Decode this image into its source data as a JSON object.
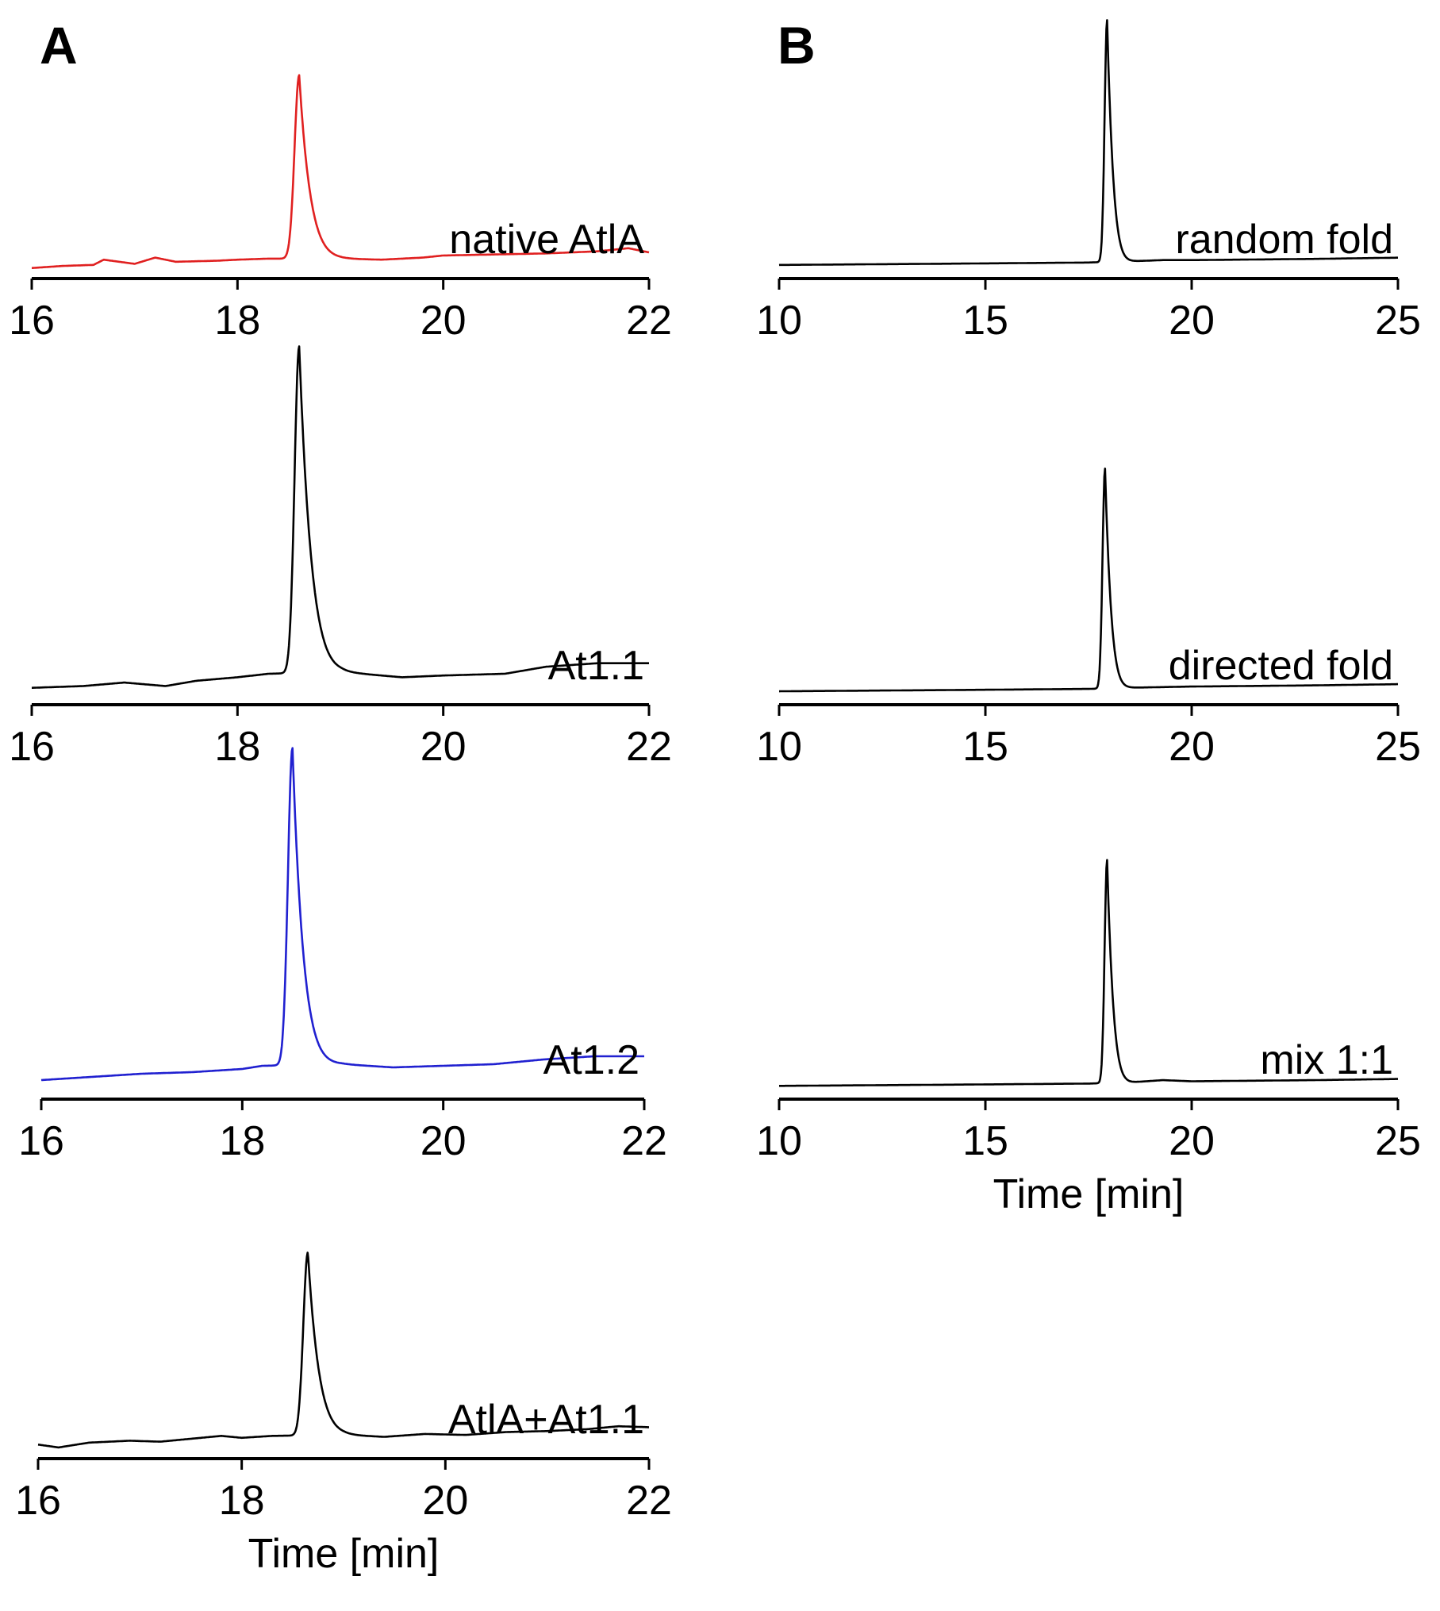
{
  "panels": [
    {
      "letter": "A"
    },
    {
      "letter": "B"
    }
  ],
  "chart_data": [
    {
      "type": "line",
      "panel": "A",
      "title": "native AtlA",
      "label": "native AtlA",
      "color": "#e02020",
      "xlim": [
        16,
        22
      ],
      "ylim": [
        0,
        1
      ],
      "ticks": [
        "16",
        "18",
        "20",
        "22"
      ],
      "xlabel": "",
      "baseline": [
        [
          16.0,
          0.02
        ],
        [
          16.3,
          0.03
        ],
        [
          16.6,
          0.035
        ],
        [
          16.7,
          0.06
        ],
        [
          17.0,
          0.04
        ],
        [
          17.2,
          0.07
        ],
        [
          17.4,
          0.05
        ],
        [
          17.8,
          0.055
        ],
        [
          18.0,
          0.06
        ],
        [
          18.3,
          0.065
        ],
        [
          19.0,
          0.065
        ],
        [
          19.4,
          0.06
        ],
        [
          19.8,
          0.07
        ],
        [
          20.0,
          0.08
        ],
        [
          20.5,
          0.085
        ],
        [
          21.0,
          0.09
        ],
        [
          21.5,
          0.1
        ],
        [
          21.8,
          0.115
        ],
        [
          22.0,
          0.095
        ]
      ],
      "peaks": [
        {
          "center": 18.6,
          "height": 0.88,
          "sigma_left": 0.045,
          "tau": 0.11
        }
      ]
    },
    {
      "type": "line",
      "panel": "A",
      "title": "At1.1",
      "label": "At1.1",
      "color": "#000000",
      "xlim": [
        16,
        22
      ],
      "ylim": [
        0,
        1
      ],
      "ticks": [
        "16",
        "18",
        "20",
        "22"
      ],
      "xlabel": "",
      "baseline": [
        [
          16.0,
          0.03
        ],
        [
          16.5,
          0.035
        ],
        [
          16.9,
          0.045
        ],
        [
          17.3,
          0.035
        ],
        [
          17.6,
          0.05
        ],
        [
          18.0,
          0.06
        ],
        [
          18.3,
          0.07
        ],
        [
          19.0,
          0.075
        ],
        [
          19.6,
          0.06
        ],
        [
          20.0,
          0.065
        ],
        [
          20.6,
          0.07
        ],
        [
          21.0,
          0.09
        ],
        [
          21.5,
          0.1
        ],
        [
          22.0,
          0.1
        ]
      ],
      "peaks": [
        {
          "center": 18.6,
          "height": 0.93,
          "sigma_left": 0.045,
          "tau": 0.12
        }
      ]
    },
    {
      "type": "line",
      "panel": "A",
      "title": "At1.2",
      "label": "At1.2",
      "color": "#2020d0",
      "xlim": [
        16,
        22
      ],
      "ylim": [
        0,
        1
      ],
      "ticks": [
        "16",
        "18",
        "20",
        "22"
      ],
      "xlabel": "",
      "baseline": [
        [
          16.0,
          0.04
        ],
        [
          16.5,
          0.05
        ],
        [
          17.0,
          0.06
        ],
        [
          17.5,
          0.065
        ],
        [
          18.0,
          0.075
        ],
        [
          18.2,
          0.085
        ],
        [
          19.0,
          0.09
        ],
        [
          19.5,
          0.08
        ],
        [
          20.0,
          0.085
        ],
        [
          20.5,
          0.09
        ],
        [
          21.0,
          0.105
        ],
        [
          21.5,
          0.115
        ],
        [
          22.0,
          0.115
        ]
      ],
      "peaks": [
        {
          "center": 18.5,
          "height": 1.0,
          "sigma_left": 0.045,
          "tau": 0.11
        }
      ]
    },
    {
      "type": "line",
      "panel": "A",
      "title": "AtlA+At1.1",
      "label": "AtlA+At1.1",
      "color": "#000000",
      "xlim": [
        16,
        22
      ],
      "ylim": [
        0,
        1
      ],
      "ticks": [
        "16",
        "18",
        "20",
        "22"
      ],
      "xlabel": "Time [min]",
      "baseline": [
        [
          16.0,
          0.04
        ],
        [
          16.2,
          0.025
        ],
        [
          16.5,
          0.05
        ],
        [
          16.9,
          0.06
        ],
        [
          17.2,
          0.055
        ],
        [
          17.5,
          0.07
        ],
        [
          17.8,
          0.085
        ],
        [
          18.0,
          0.075
        ],
        [
          18.3,
          0.085
        ],
        [
          19.0,
          0.09
        ],
        [
          19.4,
          0.08
        ],
        [
          19.8,
          0.095
        ],
        [
          20.2,
          0.09
        ],
        [
          20.6,
          0.105
        ],
        [
          21.0,
          0.11
        ],
        [
          21.4,
          0.12
        ],
        [
          21.7,
          0.135
        ],
        [
          22.0,
          0.13
        ]
      ],
      "peaks": [
        {
          "center": 18.65,
          "height": 0.95,
          "sigma_left": 0.045,
          "tau": 0.11
        }
      ]
    },
    {
      "type": "line",
      "panel": "B",
      "title": "random fold",
      "label": "random fold",
      "color": "#000000",
      "xlim": [
        10,
        25
      ],
      "ylim": [
        0,
        1
      ],
      "ticks": [
        "10",
        "15",
        "20",
        "25"
      ],
      "xlabel": "",
      "baseline": [
        [
          10.0,
          0.03
        ],
        [
          14.0,
          0.035
        ],
        [
          17.5,
          0.04
        ],
        [
          18.5,
          0.045
        ],
        [
          19.3,
          0.05
        ],
        [
          20.0,
          0.05
        ],
        [
          23.0,
          0.055
        ],
        [
          25.0,
          0.06
        ]
      ],
      "peaks": [
        {
          "center": 17.95,
          "height": 1.0,
          "sigma_left": 0.06,
          "tau": 0.16
        }
      ]
    },
    {
      "type": "line",
      "panel": "B",
      "title": "directed fold",
      "label": "directed fold",
      "color": "#000000",
      "xlim": [
        10,
        25
      ],
      "ylim": [
        0,
        1
      ],
      "ticks": [
        "10",
        "15",
        "20",
        "25"
      ],
      "xlabel": "",
      "baseline": [
        [
          10.0,
          0.03
        ],
        [
          14.0,
          0.035
        ],
        [
          17.5,
          0.04
        ],
        [
          18.5,
          0.045
        ],
        [
          20.0,
          0.05
        ],
        [
          23.0,
          0.055
        ],
        [
          25.0,
          0.06
        ]
      ],
      "peaks": [
        {
          "center": 17.9,
          "height": 0.93,
          "sigma_left": 0.06,
          "tau": 0.16
        }
      ]
    },
    {
      "type": "line",
      "panel": "B",
      "title": "mix 1:1",
      "label": "mix 1:1",
      "color": "#000000",
      "xlim": [
        10,
        25
      ],
      "ylim": [
        0,
        1
      ],
      "ticks": [
        "10",
        "15",
        "20",
        "25"
      ],
      "xlabel": "Time [min]",
      "baseline": [
        [
          10.0,
          0.03
        ],
        [
          14.0,
          0.035
        ],
        [
          17.5,
          0.04
        ],
        [
          18.5,
          0.045
        ],
        [
          19.3,
          0.055
        ],
        [
          20.0,
          0.05
        ],
        [
          23.0,
          0.055
        ],
        [
          25.0,
          0.06
        ]
      ],
      "peaks": [
        {
          "center": 17.95,
          "height": 0.97,
          "sigma_left": 0.06,
          "tau": 0.16
        }
      ]
    }
  ]
}
